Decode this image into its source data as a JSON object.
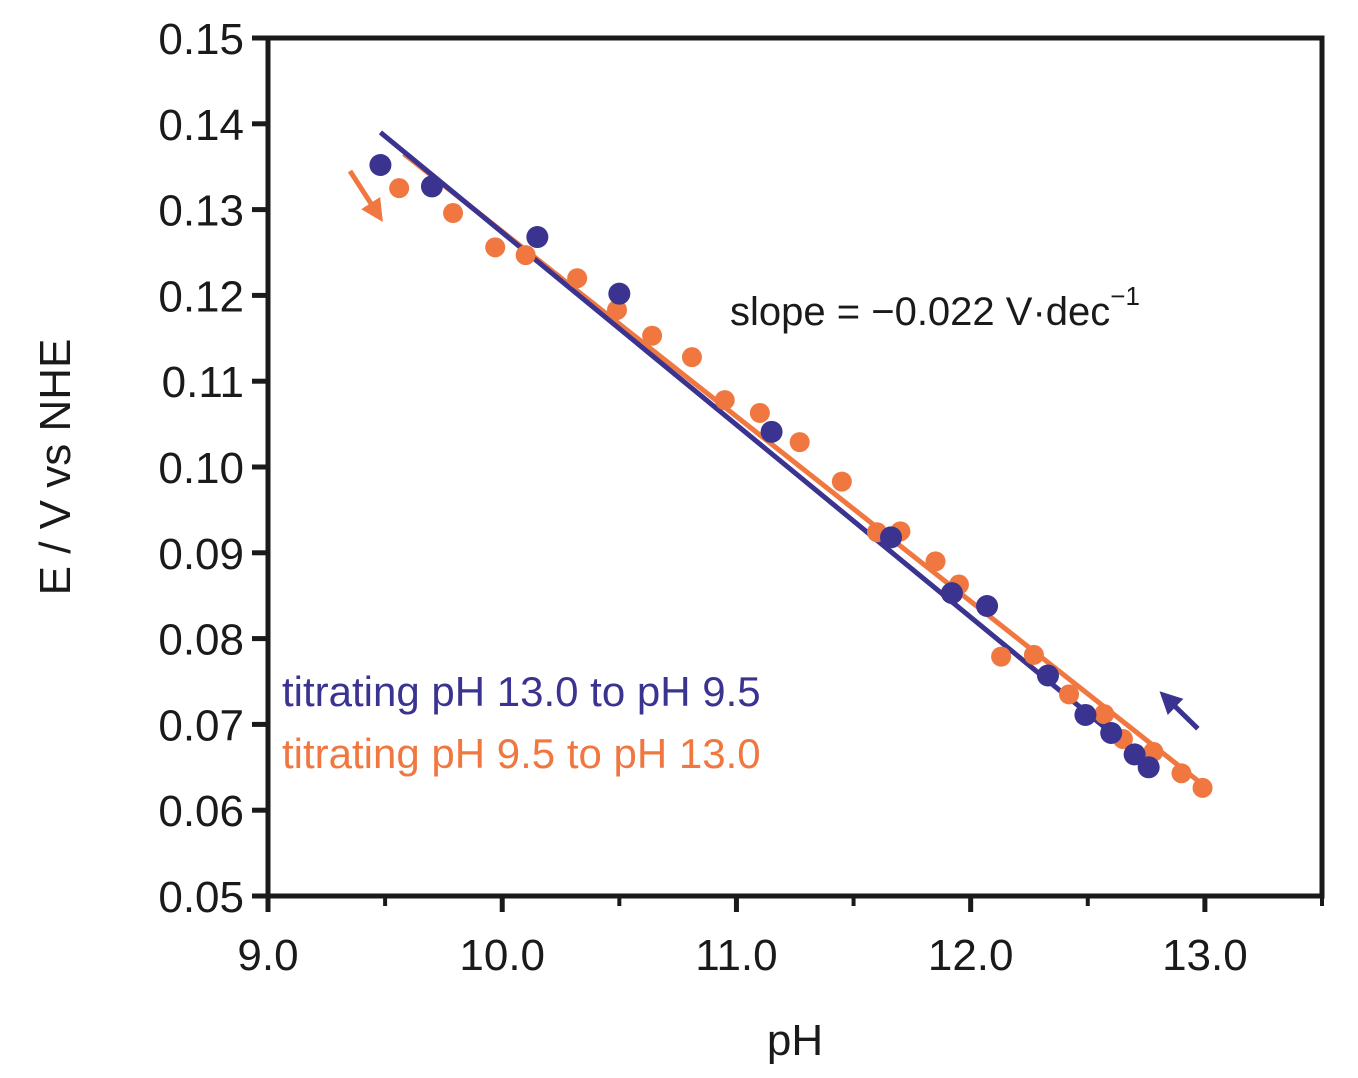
{
  "chart_data": {
    "type": "scatter",
    "xlabel": "pH",
    "ylabel": "E / V vs NHE",
    "xlim": [
      9.0,
      13.5
    ],
    "ylim": [
      0.05,
      0.15
    ],
    "x_ticks": [
      "9.0",
      "10.0",
      "11.0",
      "12.0",
      "13.0"
    ],
    "y_ticks": [
      "0.05",
      "0.06",
      "0.07",
      "0.08",
      "0.09",
      "0.10",
      "0.11",
      "0.12",
      "0.13",
      "0.14",
      "0.15"
    ],
    "grid": false,
    "legend_placement": "bottom-left",
    "annotation": {
      "text": "slope = −0.022 V·dec",
      "superscript": "−1"
    },
    "series": [
      {
        "name": "titrating pH 13.0 to pH 9.5",
        "color": "#3a3390",
        "points": [
          [
            9.48,
            0.1352
          ],
          [
            9.7,
            0.1327
          ],
          [
            10.15,
            0.1268
          ],
          [
            10.5,
            0.1202
          ],
          [
            11.15,
            0.1041
          ],
          [
            11.66,
            0.0918
          ],
          [
            11.92,
            0.0853
          ],
          [
            12.07,
            0.0838
          ],
          [
            12.33,
            0.0757
          ],
          [
            12.49,
            0.0711
          ],
          [
            12.6,
            0.069
          ],
          [
            12.7,
            0.0665
          ],
          [
            12.76,
            0.065
          ]
        ],
        "fit": [
          [
            9.48,
            0.139
          ],
          [
            12.78,
            0.065
          ]
        ],
        "arrow": {
          "from": [
            12.97,
            0.0695
          ],
          "to": [
            12.82,
            0.0735
          ]
        }
      },
      {
        "name": "titrating pH 9.5 to pH 13.0",
        "color": "#f07840",
        "points": [
          [
            9.56,
            0.1325
          ],
          [
            9.79,
            0.1296
          ],
          [
            9.97,
            0.1256
          ],
          [
            10.1,
            0.1247
          ],
          [
            10.32,
            0.122
          ],
          [
            10.49,
            0.1183
          ],
          [
            10.64,
            0.1153
          ],
          [
            10.81,
            0.1128
          ],
          [
            10.95,
            0.1078
          ],
          [
            11.1,
            0.1063
          ],
          [
            11.27,
            0.1029
          ],
          [
            11.45,
            0.0983
          ],
          [
            11.6,
            0.0924
          ],
          [
            11.7,
            0.0925
          ],
          [
            11.85,
            0.089
          ],
          [
            11.95,
            0.0863
          ],
          [
            12.13,
            0.0779
          ],
          [
            12.27,
            0.0781
          ],
          [
            12.42,
            0.0735
          ],
          [
            12.57,
            0.0712
          ],
          [
            12.65,
            0.0683
          ],
          [
            12.78,
            0.0668
          ],
          [
            12.9,
            0.0643
          ],
          [
            12.99,
            0.0626
          ]
        ],
        "fit": [
          [
            9.58,
            0.1365
          ],
          [
            12.99,
            0.063
          ]
        ],
        "arrow": {
          "from": [
            9.35,
            0.1345
          ],
          "to": [
            9.48,
            0.129
          ]
        }
      }
    ]
  }
}
